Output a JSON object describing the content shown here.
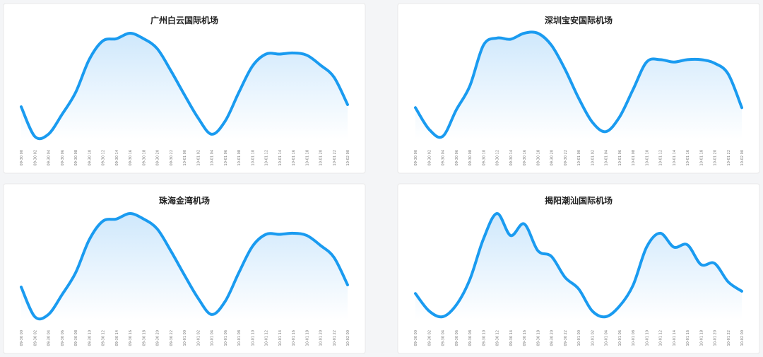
{
  "chart_data": [
    {
      "type": "line",
      "title": "广州白云国际机场",
      "color": "#1a9bf0",
      "categories": [
        "09-30 00",
        "09-30 02",
        "09-30 04",
        "09-30 06",
        "09-30 08",
        "09-30 10",
        "09-30 12",
        "09-30 14",
        "09-30 16",
        "09-30 18",
        "09-30 20",
        "09-30 22",
        "10-01 00",
        "10-01 02",
        "10-01 04",
        "10-01 06",
        "10-01 08",
        "10-01 10",
        "10-01 12",
        "10-01 14",
        "10-01 16",
        "10-01 18",
        "10-01 20",
        "10-01 22",
        "10-02 00"
      ],
      "values": [
        30,
        3,
        5,
        23,
        43,
        73,
        90,
        92,
        97,
        92,
        83,
        63,
        41,
        20,
        5,
        17,
        43,
        67,
        78,
        78,
        79,
        77,
        68,
        57,
        32
      ]
    },
    {
      "type": "line",
      "title": "深圳宝安国际机场",
      "color": "#1a9bf0",
      "categories": [
        "09-30 00",
        "09-30 02",
        "09-30 04",
        "09-30 06",
        "09-30 08",
        "09-30 10",
        "09-30 12",
        "09-30 14",
        "09-30 16",
        "09-30 18",
        "09-30 20",
        "09-30 22",
        "10-01 00",
        "10-01 02",
        "10-01 04",
        "10-01 06",
        "10-01 08",
        "10-01 10",
        "10-01 12",
        "10-01 14",
        "10-01 16",
        "10-01 18",
        "10-01 20",
        "10-01 22",
        "10-02 00"
      ],
      "values": [
        25,
        7,
        1,
        23,
        43,
        77,
        83,
        82,
        87,
        87,
        77,
        57,
        33,
        13,
        5,
        17,
        40,
        63,
        65,
        63,
        65,
        65,
        62,
        53,
        25
      ]
    },
    {
      "type": "line",
      "title": "珠海金湾机场",
      "color": "#1a9bf0",
      "categories": [
        "09-30 00",
        "09-30 02",
        "09-30 04",
        "09-30 06",
        "09-30 08",
        "09-30 10",
        "09-30 12",
        "09-30 14",
        "09-30 16",
        "09-30 18",
        "09-30 20",
        "09-30 22",
        "10-01 00",
        "10-01 02",
        "10-01 04",
        "10-01 06",
        "10-01 08",
        "10-01 10",
        "10-01 12",
        "10-01 14",
        "10-01 16",
        "10-01 18",
        "10-01 20",
        "10-01 22",
        "10-02 00"
      ],
      "values": [
        30,
        3,
        5,
        23,
        43,
        73,
        90,
        92,
        97,
        92,
        83,
        63,
        41,
        20,
        5,
        17,
        43,
        67,
        78,
        78,
        79,
        77,
        68,
        57,
        32
      ]
    },
    {
      "type": "line",
      "title": "揭阳潮汕国际机场",
      "color": "#1a9bf0",
      "categories": [
        "09-30 00",
        "09-30 02",
        "09-30 04",
        "09-30 06",
        "09-30 08",
        "09-30 10",
        "09-30 12",
        "09-30 14",
        "09-30 16",
        "09-30 18",
        "09-30 20",
        "09-30 22",
        "10-01 00",
        "10-01 02",
        "10-01 04",
        "10-01 06",
        "10-01 08",
        "10-01 10",
        "10-01 12",
        "10-01 14",
        "10-01 16",
        "10-01 18",
        "10-01 20",
        "10-01 22",
        "10-02 00"
      ],
      "values": [
        23,
        8,
        3,
        13,
        35,
        70,
        92,
        73,
        83,
        60,
        55,
        37,
        27,
        8,
        3,
        12,
        30,
        63,
        75,
        63,
        65,
        48,
        49,
        33,
        25
      ]
    }
  ]
}
